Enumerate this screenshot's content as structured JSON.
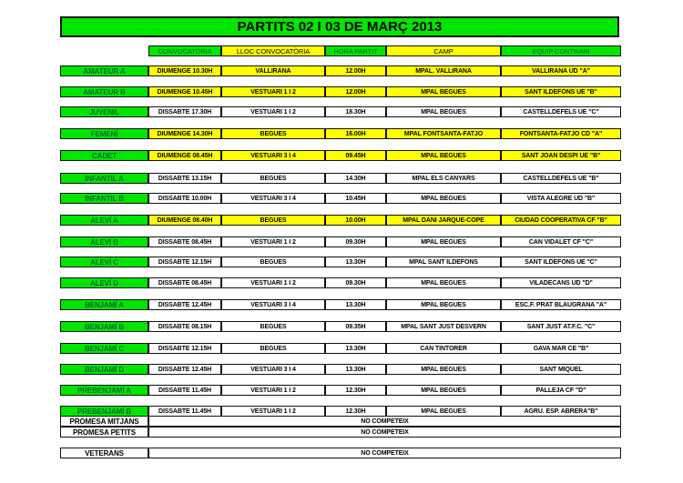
{
  "title": "PARTITS 02 I 03 DE MARÇ 2013",
  "headers": [
    "CONVOCATÒRIA",
    "LLOC CONVOCATÒRIA",
    "HORA PARTIT",
    "CAMP",
    "EQUIP CONTRARI"
  ],
  "header_colors": [
    "green",
    "yellow",
    "green",
    "yellow",
    "green"
  ],
  "colors": {
    "green": "#00e600",
    "yellow": "#ffff00",
    "white": "#ffffff"
  },
  "rows": [
    {
      "team": "AMATEUR A",
      "cells": [
        "DIUMENGE 10.30H",
        "VALLIRANA",
        "12.00H",
        "MPAL. VALLIRANA",
        "VALLIRANA UD \"A\""
      ],
      "highlight": "yellow"
    },
    {
      "team": "AMATEUR B",
      "cells": [
        "DIUMENGE 10.45H",
        "VESTUARI 1 I 2",
        "12.00H",
        "MPAL BEGUES",
        "SANT ILDEFONS UE \"B\""
      ],
      "highlight": "yellow"
    },
    {
      "team": "JUVENIL",
      "cells": [
        "DISSABTE 17.30H",
        "VESTUARI 1 I 2",
        "18.30H",
        "MPAL BEGUES",
        "CASTELLDEFELS UE \"C\""
      ],
      "highlight": "white"
    },
    {
      "team": "FEMENÍ",
      "cells": [
        "DIUMENGE 14.30H",
        "BEGUES",
        "16.00H",
        "MPAL FONTSANTA-FATJO",
        "FONTSANTA-FATJO CD \"A\""
      ],
      "highlight": "yellow"
    },
    {
      "team": "CADET",
      "cells": [
        "DIUMENGE 08.45H",
        "VESTUARI 3 I 4",
        "09.45H",
        "MPAL BEGUES",
        "SANT JOAN DESPI UE \"B\""
      ],
      "highlight": "yellow"
    },
    {
      "team": "INFANTIL A",
      "cells": [
        "DISSABTE 13.15H",
        "BEGUES",
        "14.30H",
        "MPAL ELS CANYARS",
        "CASTELLDEFELS UE \"B\""
      ],
      "highlight": "white"
    },
    {
      "team": "INFANTIL B",
      "cells": [
        "DISSABTE 10.00H",
        "VESTUARI 3 I 4",
        "10.45H",
        "MPAL BEGUES",
        "VISTA ALEGRE UD \"B\""
      ],
      "highlight": "white"
    },
    {
      "team": "ALEVÍ A",
      "cells": [
        "DIUMENGE 08.40H",
        "BEGUES",
        "10.00H",
        "MPAL DANI JARQUE-COPE",
        "CIUDAD COOPERATIVA CF \"B\""
      ],
      "highlight": "yellow"
    },
    {
      "team": "ALEVÍ B",
      "cells": [
        "DISSABTE 08.45H",
        "VESTUARI 1 I 2",
        "09.30H",
        "MPAL BEGUES",
        "CAN VIDALET CF \"C\""
      ],
      "highlight": "white"
    },
    {
      "team": "ALEVÍ C",
      "cells": [
        "DISSABTE 12.15H",
        "BEGUES",
        "13.30H",
        "MPAL SANT ILDEFONS",
        "SANT ILDEFONS UE \"C\""
      ],
      "highlight": "white"
    },
    {
      "team": "ALEVÍ D",
      "cells": [
        "DISSABTE 08.45H",
        "VESTUARI 1 I 2",
        "09.30H",
        "MPAL BEGUES",
        "VILADECANS UD \"D\""
      ],
      "highlight": "white"
    },
    {
      "team": "BENJAMÍ A",
      "cells": [
        "DISSABTE 12.45H",
        "VESTUARI 3 I 4",
        "13.30H",
        "MPAL BEGUES",
        "ESC.F. PRAT BLAUGRANA \"A\""
      ],
      "highlight": "white"
    },
    {
      "team": "BENJAMÍ B",
      "cells": [
        "DISSABTE 08.15H",
        "BEGUES",
        "09.35H",
        "MPAL SANT JUST DESVERN",
        "SANT JUST AT.F.C. \"C\""
      ],
      "highlight": "white"
    },
    {
      "team": "BENJAMÍ C",
      "cells": [
        "DISSABTE 12.15H",
        "BEGUES",
        "13.30H",
        "CAN TINTORER",
        "GAVA MAR CE \"B\""
      ],
      "highlight": "white"
    },
    {
      "team": "BENJAMÍ D",
      "cells": [
        "DISSABTE 12.45H",
        "VESTUARI 3 I 4",
        "13.30H",
        "MPAL BEGUES",
        "SANT MIQUEL"
      ],
      "highlight": "white"
    },
    {
      "team": "PREBENJAMÍ A",
      "cells": [
        "DISSABTE 11.45H",
        "VESTUARI 1 I 2",
        "12.30H",
        "MPAL BEGUES",
        "PALLEJA CF \"D\""
      ],
      "highlight": "white"
    },
    {
      "team": "PREBENJAMÍ B",
      "cells": [
        "DISSABTE 11.45H",
        "VESTUARI 1 I 2",
        "12.30H",
        "MPAL BEGUES",
        "AGRU. ESP. ABRERA\"B\""
      ],
      "highlight": "white"
    }
  ],
  "no_compete": [
    {
      "team": "PROMESA MITJANS",
      "text": "NO COMPETEIX"
    },
    {
      "team": "PROMESA PETITS",
      "text": "NO COMPETEIX"
    },
    {
      "team": "VETERANS",
      "text": "NO COMPETEIX"
    }
  ]
}
